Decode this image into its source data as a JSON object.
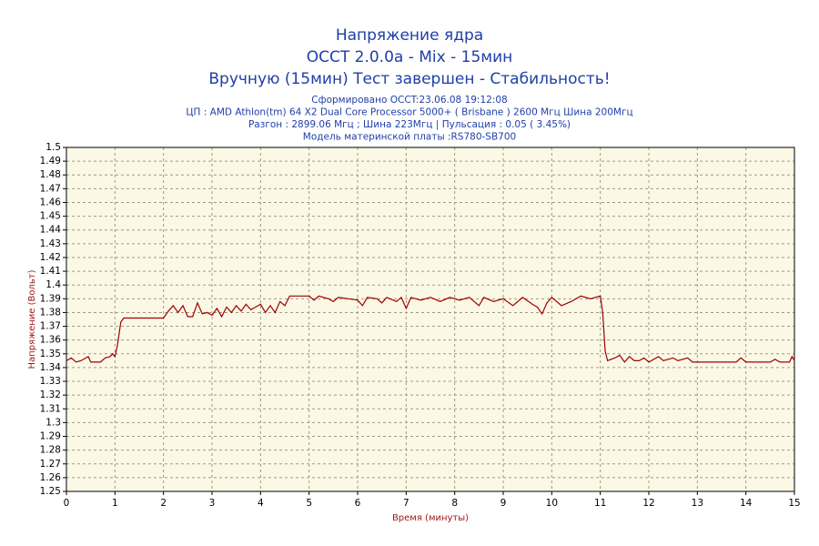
{
  "chart_data": {
    "type": "line",
    "title": [
      "Напряжение ядра",
      "OCCT 2.0.0a - Mix - 15мин",
      "Вручную (15мин) Тест завершен - Стабильность!"
    ],
    "subtitle": [
      "Сформировано OCCT:23.06.08 19:12:08",
      "ЦП : AMD Athlon(tm) 64 X2 Dual Core Processor 5000+ ( Brisbane ) 2600 Мгц Шина 200Мгц",
      "Разгон : 2899.06 Мгц ; Шина 223Мгц | Пульсация : 0.05 ( 3.45%)",
      "Модель материнской платы :RS780-SB700"
    ],
    "x_label": "Время (минуты)",
    "y_label": "Напряжение (Вольт)",
    "xlim": [
      0,
      15
    ],
    "xticks": [
      0,
      1,
      2,
      3,
      4,
      5,
      6,
      7,
      8,
      9,
      10,
      11,
      12,
      13,
      14,
      15
    ],
    "ylim": [
      1.25,
      1.5
    ],
    "yticks": [
      1.25,
      1.26,
      1.27,
      1.28,
      1.29,
      1.3,
      1.31,
      1.32,
      1.33,
      1.34,
      1.35,
      1.36,
      1.37,
      1.38,
      1.39,
      1.4,
      1.41,
      1.42,
      1.43,
      1.44,
      1.45,
      1.46,
      1.47,
      1.48,
      1.49,
      1.5
    ],
    "grid": true,
    "background": "#fbf8e6",
    "x": [
      0,
      0.1,
      0.2,
      0.3,
      0.45,
      0.5,
      0.7,
      0.8,
      0.9,
      0.95,
      1.0,
      1.05,
      1.12,
      1.18,
      2.0,
      2.1,
      2.2,
      2.3,
      2.4,
      2.5,
      2.6,
      2.7,
      2.8,
      2.9,
      3.0,
      3.1,
      3.2,
      3.3,
      3.4,
      3.5,
      3.6,
      3.7,
      3.8,
      3.9,
      4.0,
      4.1,
      4.2,
      4.3,
      4.4,
      4.5,
      4.6,
      4.7,
      5.0,
      5.1,
      5.2,
      5.4,
      5.5,
      5.6,
      5.8,
      6.0,
      6.1,
      6.2,
      6.4,
      6.5,
      6.6,
      6.8,
      6.9,
      7.0,
      7.1,
      7.3,
      7.5,
      7.7,
      7.9,
      8.1,
      8.3,
      8.5,
      8.6,
      8.8,
      9.0,
      9.2,
      9.4,
      9.6,
      9.7,
      9.8,
      9.9,
      10.0,
      10.2,
      10.4,
      10.6,
      10.8,
      11.0,
      11.05,
      11.1,
      11.15,
      11.3,
      11.4,
      11.5,
      11.6,
      11.7,
      11.8,
      11.9,
      12.0,
      12.2,
      12.3,
      12.5,
      12.6,
      12.8,
      12.9,
      13.5,
      13.8,
      13.9,
      14.0,
      14.5,
      14.6,
      14.7,
      14.9,
      14.95,
      15.0
    ],
    "series": [
      {
        "name": "Напряжение ядра",
        "color": "#a00000",
        "values": [
          1.345,
          1.347,
          1.344,
          1.345,
          1.348,
          1.344,
          1.344,
          1.347,
          1.348,
          1.35,
          1.348,
          1.356,
          1.373,
          1.376,
          1.376,
          1.381,
          1.385,
          1.38,
          1.385,
          1.377,
          1.377,
          1.387,
          1.379,
          1.38,
          1.378,
          1.383,
          1.377,
          1.384,
          1.38,
          1.385,
          1.381,
          1.386,
          1.382,
          1.384,
          1.386,
          1.38,
          1.385,
          1.38,
          1.388,
          1.385,
          1.392,
          1.392,
          1.392,
          1.389,
          1.392,
          1.39,
          1.388,
          1.391,
          1.39,
          1.389,
          1.385,
          1.391,
          1.39,
          1.387,
          1.391,
          1.388,
          1.391,
          1.383,
          1.391,
          1.389,
          1.391,
          1.388,
          1.391,
          1.389,
          1.391,
          1.385,
          1.391,
          1.388,
          1.39,
          1.385,
          1.391,
          1.386,
          1.384,
          1.379,
          1.387,
          1.391,
          1.385,
          1.388,
          1.392,
          1.39,
          1.392,
          1.38,
          1.352,
          1.345,
          1.347,
          1.349,
          1.344,
          1.348,
          1.345,
          1.345,
          1.347,
          1.344,
          1.348,
          1.345,
          1.347,
          1.345,
          1.347,
          1.344,
          1.344,
          1.344,
          1.347,
          1.344,
          1.344,
          1.346,
          1.344,
          1.344,
          1.348,
          1.345
        ]
      }
    ]
  }
}
